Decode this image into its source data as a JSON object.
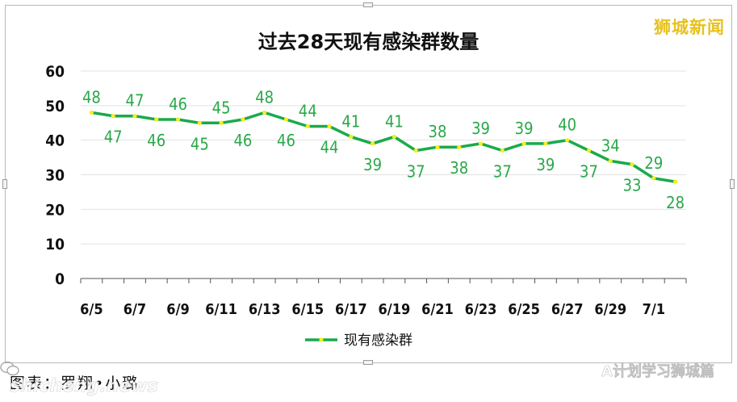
{
  "brand": "狮城新闻",
  "caption": "图表：罗翔•小璐",
  "watermark_left": "shicheng.news",
  "watermark_right": "A计划学习狮城篇",
  "colors": {
    "line": "#1aaa4b",
    "marker": "#f5ee1e",
    "label": "#2aa84a",
    "brand": "#e8c11c"
  },
  "chart_data": {
    "type": "line",
    "title": "过去28天现有感染群数量",
    "xlabel": "",
    "ylabel": "",
    "ylim": [
      0,
      60
    ],
    "yticks": [
      0,
      10,
      20,
      30,
      40,
      50,
      60
    ],
    "grid": true,
    "legend": "bottom",
    "x": [
      "6/5",
      "6/6",
      "6/7",
      "6/8",
      "6/9",
      "6/10",
      "6/11",
      "6/12",
      "6/13",
      "6/14",
      "6/15",
      "6/16",
      "6/17",
      "6/18",
      "6/19",
      "6/20",
      "6/21",
      "6/22",
      "6/23",
      "6/24",
      "6/25",
      "6/26",
      "6/27",
      "6/28",
      "6/29",
      "6/30",
      "7/1",
      "7/2"
    ],
    "x_tick_labels": [
      "6/5",
      "6/7",
      "6/9",
      "6/11",
      "6/13",
      "6/15",
      "6/17",
      "6/19",
      "6/21",
      "6/23",
      "6/25",
      "6/27",
      "6/29",
      "7/1"
    ],
    "series": [
      {
        "name": "现有感染群",
        "values": [
          48,
          47,
          47,
          46,
          46,
          45,
          45,
          46,
          48,
          46,
          44,
          44,
          41,
          39,
          41,
          37,
          38,
          38,
          39,
          37,
          39,
          39,
          40,
          37,
          34,
          33,
          29,
          28
        ]
      }
    ]
  }
}
